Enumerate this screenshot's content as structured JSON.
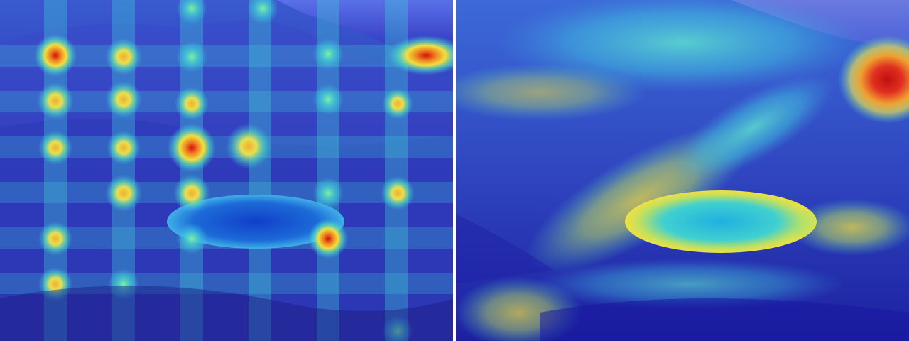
{
  "panels": [
    {
      "overlay": "grid-heatmap",
      "colormap": "jet"
    },
    {
      "overlay": "smooth-heatmap",
      "colormap": "jet"
    }
  ],
  "colors": {
    "low": "#1a1aa8",
    "mid": "#38e0d0",
    "high": "#f0e030",
    "peak": "#e01010",
    "lake": "#1c6ad8"
  }
}
